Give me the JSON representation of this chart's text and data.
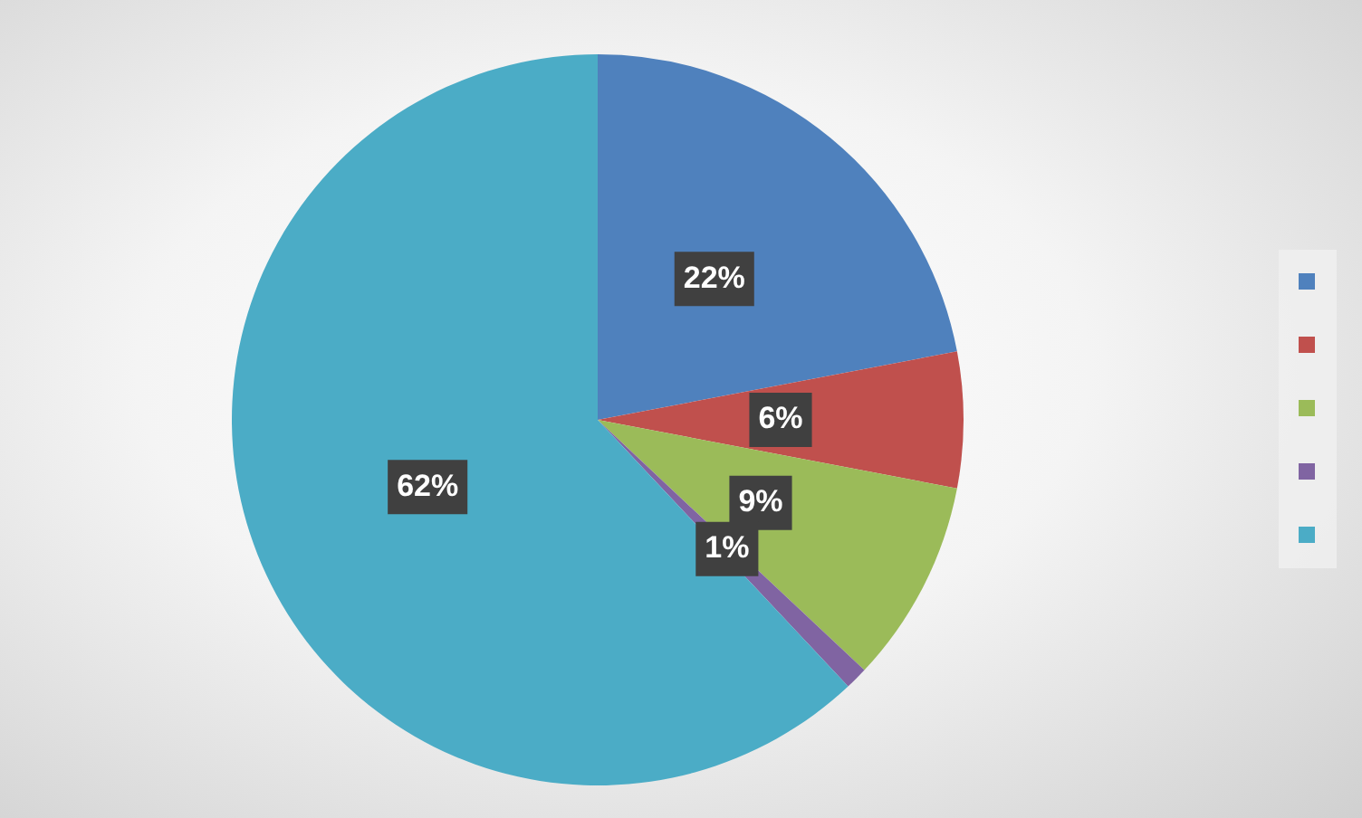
{
  "chart_data": {
    "type": "pie",
    "categories": [
      null,
      null,
      null,
      null,
      null
    ],
    "values": [
      22,
      6,
      9,
      1,
      62
    ],
    "colors": [
      "#4f81bd",
      "#c0504d",
      "#9bbb59",
      "#8064a2",
      "#4bacc6"
    ],
    "value_labels": [
      "22%",
      "6%",
      "9%",
      "1%",
      "62%"
    ]
  }
}
